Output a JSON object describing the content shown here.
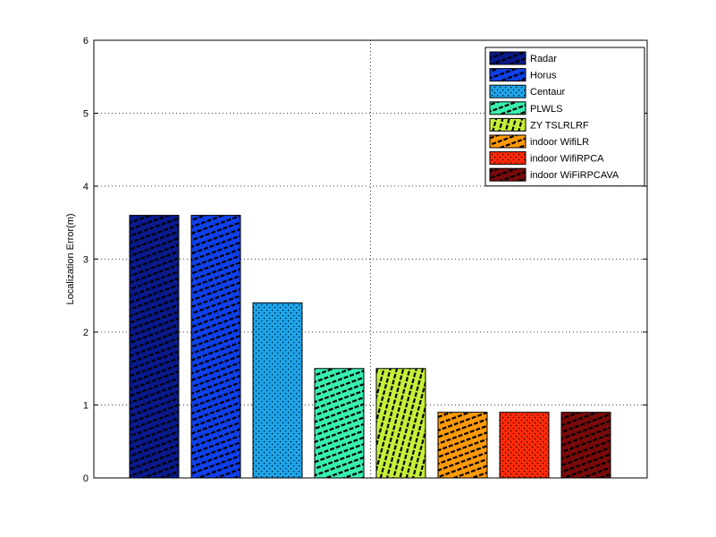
{
  "chart_data": {
    "type": "bar",
    "xlabel": "",
    "ylabel": "Localization Error(m)",
    "ylim": [
      0,
      6
    ],
    "yticks": [
      "0",
      "1",
      "2",
      "3",
      "4",
      "5",
      "6"
    ],
    "grid": true,
    "legend_placement": "top-right",
    "series": [
      {
        "name": "Radar",
        "value": 3.6,
        "color": "#0a1a8c",
        "pattern": "stripe-steep"
      },
      {
        "name": "Horus",
        "value": 3.6,
        "color": "#1040ea",
        "pattern": "stripe-steep"
      },
      {
        "name": "Centaur",
        "value": 2.4,
        "color": "#1ca4ea",
        "pattern": "dots"
      },
      {
        "name": "PLWLS",
        "value": 1.5,
        "color": "#38f0b0",
        "pattern": "stripe-steep"
      },
      {
        "name": "ZY TSLRLRF",
        "value": 1.5,
        "color": "#c6f03a",
        "pattern": "stripe-shallow"
      },
      {
        "name": "indoor WifiLR",
        "value": 0.9,
        "color": "#ff9a08",
        "pattern": "stripe-steep"
      },
      {
        "name": "indoor WifiRPCA",
        "value": 0.9,
        "color": "#ff2a08",
        "pattern": "dots"
      },
      {
        "name": "indoor WiFiRPCAVA",
        "value": 0.9,
        "color": "#7a0a0a",
        "pattern": "stripe-steep"
      }
    ]
  }
}
